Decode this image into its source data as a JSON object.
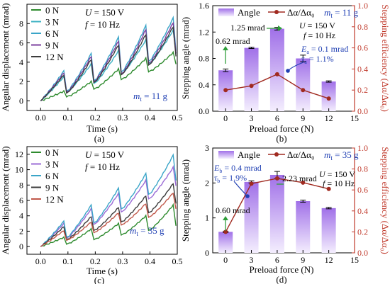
{
  "chart_data": [
    {
      "type": "line",
      "panel": "(a)",
      "xlabel": "Time (s)",
      "ylabel": "Angular displacement (mrad)",
      "xlim": [
        -0.05,
        0.5
      ],
      "ylim": [
        -1,
        10
      ],
      "xticks": [
        "0.0",
        "0.1",
        "0.2",
        "0.3",
        "0.4",
        "0.5"
      ],
      "yticks": [
        "0",
        "2",
        "4",
        "6",
        "8"
      ],
      "annotations": [
        "U = 150 V",
        "f = 10 Hz",
        "m_t = 11 g"
      ],
      "legend_position": "top-left",
      "series": [
        {
          "name": "0 N",
          "color": "#2e8b2e",
          "peaks": [
            1.0,
            2.0,
            3.3,
            4.4,
            5.0
          ],
          "valleys": [
            0.4,
            1.2,
            2.2,
            3.0,
            3.8
          ]
        },
        {
          "name": "3 N",
          "color": "#3cb1c3",
          "peaks": [
            2.5,
            3.8,
            5.2,
            6.3,
            7.3
          ],
          "valleys": [
            0.9,
            1.8,
            2.8,
            3.8,
            4.9
          ]
        },
        {
          "name": "6 N",
          "color": "#3aa5c8",
          "peaks": [
            3.1,
            4.9,
            6.6,
            7.8,
            8.6
          ],
          "valleys": [
            1.0,
            2.1,
            3.0,
            4.1,
            5.2
          ]
        },
        {
          "name": "9 N",
          "color": "#7b3f9e",
          "peaks": [
            2.9,
            4.6,
            6.2,
            7.4,
            8.1
          ],
          "valleys": [
            0.9,
            2.0,
            2.8,
            3.9,
            4.9
          ]
        },
        {
          "name": "12 N",
          "color": "#3c3c3c",
          "peaks": [
            2.7,
            4.3,
            5.8,
            6.9,
            7.7
          ],
          "valleys": [
            0.8,
            1.9,
            2.7,
            3.7,
            4.6
          ]
        }
      ]
    },
    {
      "type": "bar",
      "panel": "(b)",
      "xlabel": "Preload force (N)",
      "ylabel": "Stepping angle (mrad)",
      "y2label": "Stepping efficiency (Δα/Δα₀)",
      "categories": [
        "0",
        "3",
        "6",
        "9",
        "12"
      ],
      "xlim": [
        -1.5,
        15
      ],
      "xticks": [
        "0",
        "3",
        "6",
        "9",
        "12",
        "15"
      ],
      "ylim": [
        0,
        1.6
      ],
      "yticks": [
        "0.0",
        "0.4",
        "0.8",
        "1.2",
        "1.6"
      ],
      "y2lim": [
        0,
        1.0
      ],
      "y2ticks": [
        "0.0",
        "0.2",
        "0.4",
        "0.6",
        "0.8",
        "1.0"
      ],
      "series": [
        {
          "name": "Angle",
          "axis": "left",
          "values": [
            0.62,
            0.96,
            1.25,
            0.8,
            0.45
          ],
          "errors": [
            0.02,
            0.01,
            0.02,
            0.05,
            0.01
          ]
        },
        {
          "name": "Δα/Δα₀",
          "axis": "right",
          "values": [
            0.2,
            0.24,
            0.35,
            0.2,
            0.12
          ]
        }
      ],
      "annotations": [
        "m_t = 11 g",
        "U = 150 V",
        "f = 10 Hz",
        "1.25 mrad",
        "0.62 mrad",
        "E_a = 0.1 mrad",
        "τ_a = 1.1%"
      ]
    },
    {
      "type": "line",
      "panel": "(c)",
      "xlabel": "Time (s)",
      "ylabel": "Angular displacement (mrad)",
      "xlim": [
        -0.05,
        0.5
      ],
      "ylim": [
        -1,
        13
      ],
      "xticks": [
        "0.0",
        "0.1",
        "0.2",
        "0.3",
        "0.4",
        "0.5"
      ],
      "yticks": [
        "0",
        "2",
        "4",
        "6",
        "8",
        "10",
        "12"
      ],
      "annotations": [
        "U = 150 V",
        "f = 10 Hz",
        "m_t = 35 g"
      ],
      "legend_position": "top-left",
      "series": [
        {
          "name": "0 N",
          "color": "#2e8b2e",
          "peaks": [
            1.2,
            2.3,
            3.0,
            4.0,
            5.4
          ],
          "valleys": [
            0.3,
            0.9,
            1.5,
            2.1,
            2.7
          ]
        },
        {
          "name": "3 N",
          "color": "#9b6bd6",
          "peaks": [
            3.0,
            4.9,
            6.9,
            8.6,
            10.3
          ],
          "valleys": [
            1.1,
            2.9,
            4.5,
            6.2,
            7.9
          ]
        },
        {
          "name": "6 N",
          "color": "#3aa5c8",
          "peaks": [
            3.3,
            5.4,
            7.6,
            9.5,
            11.9
          ],
          "valleys": [
            1.2,
            3.1,
            4.9,
            6.8,
            8.6
          ]
        },
        {
          "name": "9 N",
          "color": "#3c3c3c",
          "peaks": [
            2.6,
            3.9,
            5.1,
            6.6,
            8.2
          ],
          "valleys": [
            0.9,
            2.1,
            3.2,
            4.4,
            5.6
          ]
        },
        {
          "name": "12 N",
          "color": "#c0584a",
          "peaks": [
            2.1,
            3.2,
            4.4,
            5.6,
            7.0
          ],
          "valleys": [
            0.8,
            1.8,
            2.8,
            3.8,
            4.9
          ]
        }
      ]
    },
    {
      "type": "bar",
      "panel": "(d)",
      "xlabel": "Preload force (N)",
      "ylabel": "Stepping angle (mrad)",
      "y2label": "Stepping efficiency (Δα/Δα₀)",
      "categories": [
        "0",
        "3",
        "6",
        "9",
        "12"
      ],
      "xlim": [
        -1.5,
        15
      ],
      "xticks": [
        "0",
        "3",
        "6",
        "9",
        "12",
        "15"
      ],
      "ylim": [
        0,
        3
      ],
      "yticks": [
        "0",
        "1",
        "2",
        "3"
      ],
      "y2lim": [
        0,
        1.0
      ],
      "y2ticks": [
        "0.0",
        "0.2",
        "0.4",
        "0.6",
        "0.8",
        "1.0"
      ],
      "series": [
        {
          "name": "Angle",
          "axis": "left",
          "values": [
            0.6,
            2.03,
            2.23,
            1.48,
            1.28
          ],
          "errors": [
            0.02,
            0.03,
            0.1,
            0.03,
            0.02
          ]
        },
        {
          "name": "Δα/Δα₀",
          "axis": "right",
          "values": [
            0.2,
            0.66,
            0.71,
            0.67,
            0.61
          ]
        }
      ],
      "annotations": [
        "m_t = 35 g",
        "U = 150 V",
        "f = 10 Hz",
        "2.23 mrad",
        "0.60 mrad",
        "E_b = 0.4 mrad",
        "τ_b = 1.9%"
      ]
    }
  ],
  "colors": {
    "bar_top": "#a070e8",
    "bar_bottom": "#f2eafd",
    "efficiency_line": "#a02a20",
    "right_axis": "#c0392b",
    "annotation_green": "#2f9e3a",
    "annotation_blue": "#1f3fb3"
  },
  "labels": {
    "angle_legend": "Angle",
    "eff_legend": "Δα/Δα₀",
    "panel_a": "(a)",
    "panel_b": "(b)",
    "panel_c": "(c)",
    "panel_d": "(d)",
    "U": "U",
    "U_val": " = 150 V",
    "f": "f",
    "f_val": " = 10 Hz",
    "m": "m",
    "m_sub": "t",
    "m11_val": " = 11 g",
    "m35_val": " = 35 g",
    "b_125": "1.25 mrad",
    "b_062": "0.62 mrad",
    "b_Ea": "E",
    "b_Ea_sub": "a",
    "b_Ea_val": " = 0.1 mrad",
    "b_ta": "τ",
    "b_ta_sub": "a",
    "b_ta_val": " = 1.1%",
    "d_223": "2.23 mrad",
    "d_060": "0.60 mrad",
    "d_Eb": "E",
    "d_Eb_sub": "b",
    "d_Eb_val": " = 0.4 mrad",
    "d_tb": "τ",
    "d_tb_sub": "b",
    "d_tb_val": " = 1.9%"
  }
}
